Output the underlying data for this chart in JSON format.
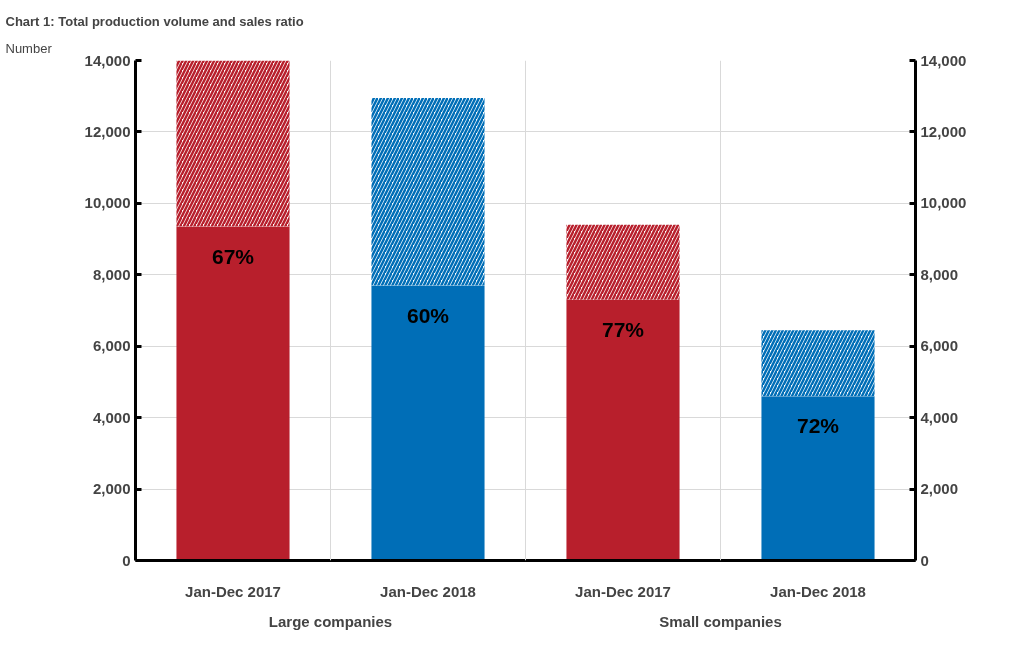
{
  "chart_data": {
    "type": "bar",
    "stacked": true,
    "title": "Chart 1: Total production volume and sales ratio",
    "ylabel": "Number",
    "categories": [
      "Jan-Dec 2017",
      "Jan-Dec 2018",
      "Jan-Dec 2017",
      "Jan-Dec 2018"
    ],
    "annotations": [
      "Large companies",
      "Small companies",
      {
        "text": "67%",
        "y": 9350
      },
      {
        "text": "60%",
        "y": 7700
      },
      {
        "text": "77%",
        "y": 7300
      },
      {
        "text": "72%",
        "y": 4600
      }
    ],
    "series": [
      {
        "colors": [
          "#b81f2c",
          "#006eb7",
          "#b81f2c",
          "#006eb7"
        ],
        "values": [
          9350,
          7700,
          7300,
          4600
        ]
      },
      {
        "colors": [
          "#b81f2c",
          "#006eb7",
          "#b81f2c",
          "#006eb7"
        ],
        "values": [
          4650,
          5250,
          2100,
          1850
        ]
      }
    ],
    "ylim": [
      0,
      14000
    ],
    "yticks": [
      0,
      {
        "value": 2000,
        "label": "2,000"
      },
      {
        "value": 4000,
        "label": "4,000"
      },
      {
        "value": 6000,
        "label": "6,000"
      },
      {
        "value": 8000,
        "label": "8,000"
      },
      {
        "value": 10000,
        "label": "10,000"
      },
      {
        "value": 12000,
        "label": "12,000"
      },
      {
        "value": 14000,
        "label": "14,000"
      }
    ],
    "y2lim": [
      0,
      14000
    ],
    "y2ticks": [
      0,
      {
        "value": 2000,
        "label": "2,000"
      },
      {
        "value": 4000,
        "label": "4,000"
      },
      {
        "value": 6000,
        "label": "6,000"
      },
      {
        "value": 8000,
        "label": "8,000"
      },
      {
        "value": 10000,
        "label": "10,000"
      },
      {
        "value": 12000,
        "label": "12,000"
      },
      {
        "value": 14000,
        "label": "14,000"
      }
    ],
    "grid": true
  }
}
